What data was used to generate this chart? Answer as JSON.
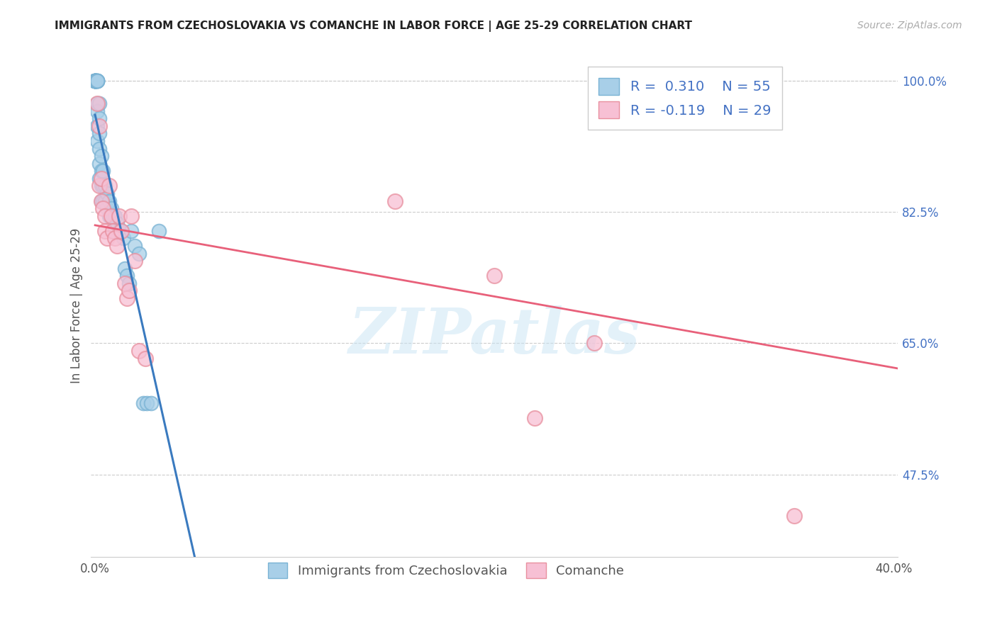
{
  "title": "IMMIGRANTS FROM CZECHOSLOVAKIA VS COMANCHE IN LABOR FORCE | AGE 25-29 CORRELATION CHART",
  "source": "Source: ZipAtlas.com",
  "ylabel": "In Labor Force | Age 25-29",
  "xlim": [
    -0.002,
    0.402
  ],
  "ylim": [
    0.365,
    1.035
  ],
  "ytick_values": [
    1.0,
    0.825,
    0.65,
    0.475
  ],
  "ytick_labels": [
    "100.0%",
    "82.5%",
    "65.0%",
    "47.5%"
  ],
  "xticks": [
    0.0,
    0.05,
    0.1,
    0.15,
    0.2,
    0.25,
    0.3,
    0.35,
    0.4
  ],
  "xtick_labels": [
    "0.0%",
    "",
    "",
    "",
    "",
    "",
    "",
    "",
    "40.0%"
  ],
  "blue_R": 0.31,
  "blue_N": 55,
  "pink_R": -0.119,
  "pink_N": 29,
  "blue_scatter_color": "#a8cfe8",
  "blue_edge_color": "#7ab3d4",
  "pink_scatter_color": "#f7c0d4",
  "pink_edge_color": "#e8909f",
  "blue_line_color": "#3a7abf",
  "pink_line_color": "#e8607a",
  "legend_label_blue": "Immigrants from Czechoslovakia",
  "legend_label_pink": "Comanche",
  "watermark_text": "ZIPatlas",
  "blue_x": [
    0.0,
    0.0,
    0.0,
    0.0,
    0.0,
    0.0,
    0.0,
    0.0,
    0.0,
    0.0,
    0.001,
    0.001,
    0.001,
    0.001,
    0.001,
    0.001,
    0.001,
    0.001,
    0.002,
    0.002,
    0.002,
    0.002,
    0.002,
    0.002,
    0.003,
    0.003,
    0.003,
    0.003,
    0.004,
    0.004,
    0.004,
    0.005,
    0.005,
    0.006,
    0.006,
    0.007,
    0.007,
    0.008,
    0.009,
    0.01,
    0.01,
    0.011,
    0.012,
    0.013,
    0.014,
    0.015,
    0.016,
    0.017,
    0.018,
    0.02,
    0.022,
    0.024,
    0.026,
    0.028,
    0.032
  ],
  "blue_y": [
    1.0,
    1.0,
    1.0,
    1.0,
    1.0,
    1.0,
    1.0,
    1.0,
    1.0,
    1.0,
    1.0,
    1.0,
    1.0,
    1.0,
    0.97,
    0.96,
    0.94,
    0.92,
    0.97,
    0.95,
    0.93,
    0.91,
    0.89,
    0.87,
    0.9,
    0.88,
    0.86,
    0.84,
    0.88,
    0.86,
    0.84,
    0.86,
    0.84,
    0.85,
    0.83,
    0.84,
    0.82,
    0.83,
    0.82,
    0.82,
    0.8,
    0.81,
    0.8,
    0.8,
    0.79,
    0.75,
    0.74,
    0.73,
    0.8,
    0.78,
    0.77,
    0.57,
    0.57,
    0.57,
    0.8
  ],
  "pink_x": [
    0.001,
    0.002,
    0.002,
    0.003,
    0.003,
    0.004,
    0.005,
    0.005,
    0.006,
    0.007,
    0.008,
    0.009,
    0.01,
    0.011,
    0.012,
    0.013,
    0.015,
    0.016,
    0.017,
    0.018,
    0.02,
    0.022,
    0.025,
    0.15,
    0.2,
    0.22,
    0.25,
    0.32,
    0.35
  ],
  "pink_y": [
    0.97,
    0.94,
    0.86,
    0.87,
    0.84,
    0.83,
    0.82,
    0.8,
    0.79,
    0.86,
    0.82,
    0.8,
    0.79,
    0.78,
    0.82,
    0.8,
    0.73,
    0.71,
    0.72,
    0.82,
    0.76,
    0.64,
    0.63,
    0.84,
    0.74,
    0.55,
    0.65,
    1.0,
    0.42
  ]
}
